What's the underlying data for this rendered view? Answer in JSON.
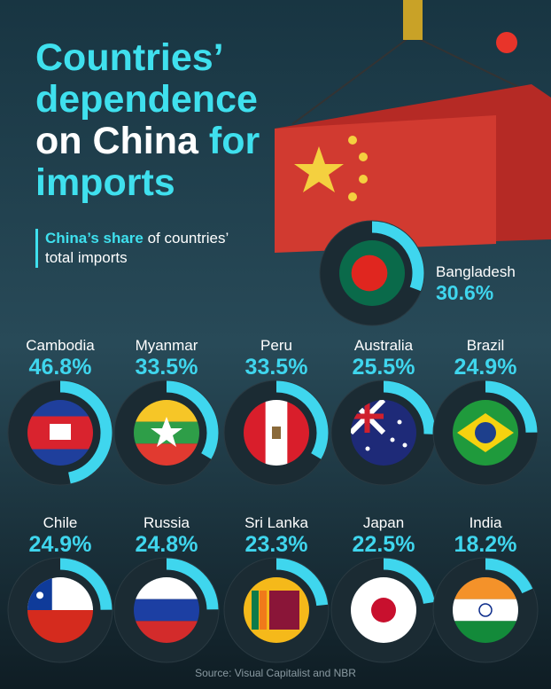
{
  "chart_data": {
    "type": "donut",
    "title_parts": [
      {
        "text": "Countries’ dependence",
        "color": "#3fe0ee"
      },
      {
        "text": "on China",
        "color": "#ffffff"
      },
      {
        "text": "for imports",
        "color": "#3fe0ee"
      }
    ],
    "subtitle_parts": [
      {
        "text": "China’s share",
        "color": "#3fe0ee"
      },
      {
        "text": "of countries’ total imports",
        "color": "#ffffff"
      }
    ],
    "categories": [
      "Bangladesh",
      "Cambodia",
      "Myanmar",
      "Peru",
      "Australia",
      "Brazil",
      "Chile",
      "Russia",
      "Sri Lanka",
      "Japan",
      "India"
    ],
    "values": [
      30.6,
      46.8,
      33.5,
      33.5,
      25.5,
      24.9,
      24.9,
      24.8,
      23.3,
      22.5,
      18.2
    ],
    "value_labels": [
      "30.6%",
      "46.8%",
      "33.5%",
      "33.5%",
      "25.5%",
      "24.9%",
      "24.9%",
      "24.8%",
      "23.3%",
      "22.5%",
      "18.2%"
    ],
    "ylim": [
      0,
      100
    ],
    "color": "#3fd6ee",
    "source": "Source: Visual Capitalist and NBR"
  }
}
